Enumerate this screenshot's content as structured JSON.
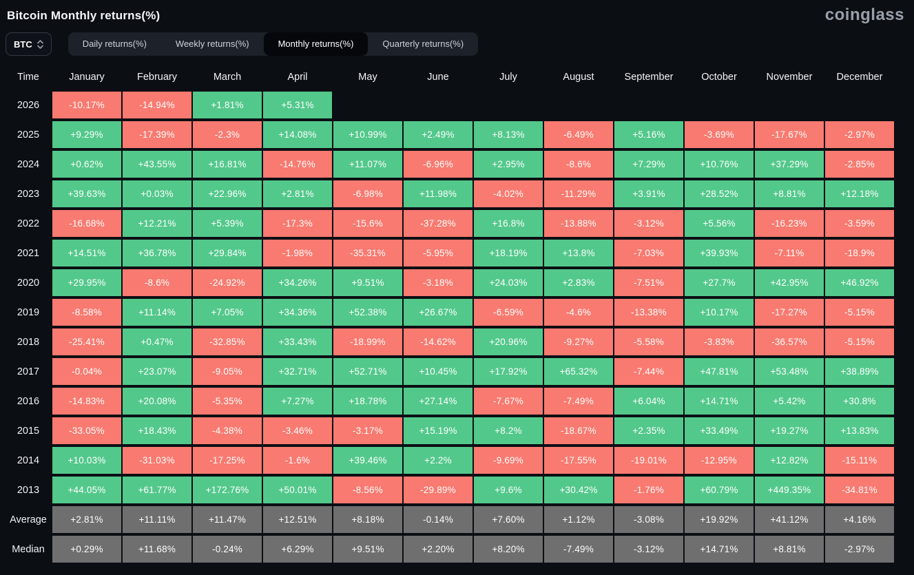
{
  "header": {
    "title": "Bitcoin Monthly returns(%)",
    "logo": "coinglass"
  },
  "controls": {
    "symbol_select": {
      "value": "BTC"
    },
    "tabs": [
      {
        "label": "Daily returns(%)",
        "active": false
      },
      {
        "label": "Weekly returns(%)",
        "active": false
      },
      {
        "label": "Monthly returns(%)",
        "active": true
      },
      {
        "label": "Quarterly returns(%)",
        "active": false
      }
    ]
  },
  "chart_data": {
    "type": "heatmap",
    "title": "Bitcoin Monthly returns(%)",
    "time_column_header": "Time",
    "columns": [
      "January",
      "February",
      "March",
      "April",
      "May",
      "June",
      "July",
      "August",
      "September",
      "October",
      "November",
      "December"
    ],
    "colors": {
      "positive": "#53c88b",
      "negative": "#f87a70",
      "summary": "#6f6f6f"
    },
    "rows": [
      {
        "label": "2026",
        "kind": "year",
        "values": [
          "-10.17%",
          "-14.94%",
          "+1.81%",
          "+5.31%",
          "",
          "",
          "",
          "",
          "",
          "",
          "",
          ""
        ]
      },
      {
        "label": "2025",
        "kind": "year",
        "values": [
          "+9.29%",
          "-17.39%",
          "-2.3%",
          "+14.08%",
          "+10.99%",
          "+2.49%",
          "+8.13%",
          "-6.49%",
          "+5.16%",
          "-3.69%",
          "-17.67%",
          "-2.97%"
        ]
      },
      {
        "label": "2024",
        "kind": "year",
        "values": [
          "+0.62%",
          "+43.55%",
          "+16.81%",
          "-14.76%",
          "+11.07%",
          "-6.96%",
          "+2.95%",
          "-8.6%",
          "+7.29%",
          "+10.76%",
          "+37.29%",
          "-2.85%"
        ]
      },
      {
        "label": "2023",
        "kind": "year",
        "values": [
          "+39.63%",
          "+0.03%",
          "+22.96%",
          "+2.81%",
          "-6.98%",
          "+11.98%",
          "-4.02%",
          "-11.29%",
          "+3.91%",
          "+28.52%",
          "+8.81%",
          "+12.18%"
        ]
      },
      {
        "label": "2022",
        "kind": "year",
        "values": [
          "-16.68%",
          "+12.21%",
          "+5.39%",
          "-17.3%",
          "-15.6%",
          "-37.28%",
          "+16.8%",
          "-13.88%",
          "-3.12%",
          "+5.56%",
          "-16.23%",
          "-3.59%"
        ]
      },
      {
        "label": "2021",
        "kind": "year",
        "values": [
          "+14.51%",
          "+36.78%",
          "+29.84%",
          "-1.98%",
          "-35.31%",
          "-5.95%",
          "+18.19%",
          "+13.8%",
          "-7.03%",
          "+39.93%",
          "-7.11%",
          "-18.9%"
        ]
      },
      {
        "label": "2020",
        "kind": "year",
        "values": [
          "+29.95%",
          "-8.6%",
          "-24.92%",
          "+34.26%",
          "+9.51%",
          "-3.18%",
          "+24.03%",
          "+2.83%",
          "-7.51%",
          "+27.7%",
          "+42.95%",
          "+46.92%"
        ]
      },
      {
        "label": "2019",
        "kind": "year",
        "values": [
          "-8.58%",
          "+11.14%",
          "+7.05%",
          "+34.36%",
          "+52.38%",
          "+26.67%",
          "-6.59%",
          "-4.6%",
          "-13.38%",
          "+10.17%",
          "-17.27%",
          "-5.15%"
        ]
      },
      {
        "label": "2018",
        "kind": "year",
        "values": [
          "-25.41%",
          "+0.47%",
          "-32.85%",
          "+33.43%",
          "-18.99%",
          "-14.62%",
          "+20.96%",
          "-9.27%",
          "-5.58%",
          "-3.83%",
          "-36.57%",
          "-5.15%"
        ]
      },
      {
        "label": "2017",
        "kind": "year",
        "values": [
          "-0.04%",
          "+23.07%",
          "-9.05%",
          "+32.71%",
          "+52.71%",
          "+10.45%",
          "+17.92%",
          "+65.32%",
          "-7.44%",
          "+47.81%",
          "+53.48%",
          "+38.89%"
        ]
      },
      {
        "label": "2016",
        "kind": "year",
        "values": [
          "-14.83%",
          "+20.08%",
          "-5.35%",
          "+7.27%",
          "+18.78%",
          "+27.14%",
          "-7.67%",
          "-7.49%",
          "+6.04%",
          "+14.71%",
          "+5.42%",
          "+30.8%"
        ]
      },
      {
        "label": "2015",
        "kind": "year",
        "values": [
          "-33.05%",
          "+18.43%",
          "-4.38%",
          "-3.46%",
          "-3.17%",
          "+15.19%",
          "+8.2%",
          "-18.67%",
          "+2.35%",
          "+33.49%",
          "+19.27%",
          "+13.83%"
        ]
      },
      {
        "label": "2014",
        "kind": "year",
        "values": [
          "+10.03%",
          "-31.03%",
          "-17.25%",
          "-1.6%",
          "+39.46%",
          "+2.2%",
          "-9.69%",
          "-17.55%",
          "-19.01%",
          "-12.95%",
          "+12.82%",
          "-15.11%"
        ]
      },
      {
        "label": "2013",
        "kind": "year",
        "values": [
          "+44.05%",
          "+61.77%",
          "+172.76%",
          "+50.01%",
          "-8.56%",
          "-29.89%",
          "+9.6%",
          "+30.42%",
          "-1.76%",
          "+60.79%",
          "+449.35%",
          "-34.81%"
        ]
      },
      {
        "label": "Average",
        "kind": "summary",
        "values": [
          "+2.81%",
          "+11.11%",
          "+11.47%",
          "+12.51%",
          "+8.18%",
          "-0.14%",
          "+7.60%",
          "+1.12%",
          "-3.08%",
          "+19.92%",
          "+41.12%",
          "+4.16%"
        ]
      },
      {
        "label": "Median",
        "kind": "summary",
        "values": [
          "+0.29%",
          "+11.68%",
          "-0.24%",
          "+6.29%",
          "+9.51%",
          "+2.20%",
          "+8.20%",
          "-7.49%",
          "-3.12%",
          "+14.71%",
          "+8.81%",
          "-2.97%"
        ]
      }
    ]
  }
}
